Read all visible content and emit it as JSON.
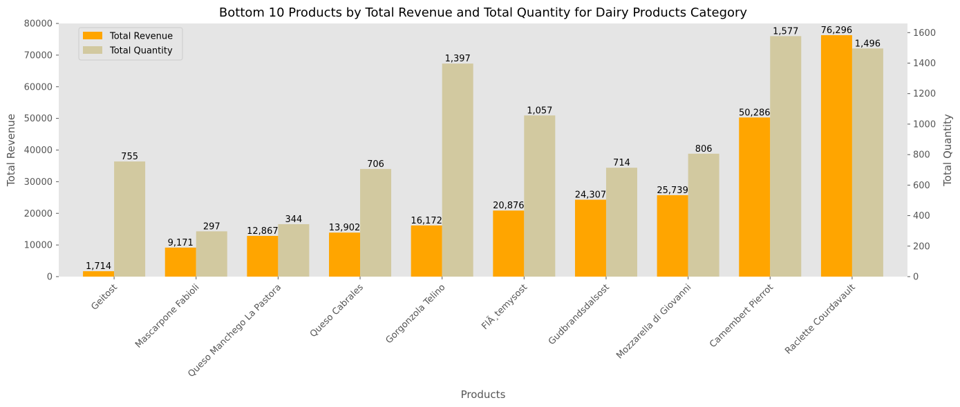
{
  "chart_data": {
    "type": "bar",
    "title": "Bottom 10 Products by Total Revenue and Total Quantity for Dairy Products Category",
    "xlabel": "Products",
    "ylabel": "Total Revenue",
    "y2label": "Total Quantity",
    "categories": [
      "Geitost",
      "Mascarpone Fabioli",
      "Queso Manchego La Pastora",
      "Queso Cabrales",
      "Gorgonzola Telino",
      "FlÃ¸temysost",
      "Gudbrandsdalsost",
      "Mozzarella di Giovanni",
      "Camembert Pierrot",
      "Raclette Courdavault"
    ],
    "series": [
      {
        "name": "Total Revenue",
        "axis": "left",
        "color": "#FFA500",
        "values": [
          1714,
          9171,
          12867,
          13902,
          16172,
          20876,
          24307,
          25739,
          50286,
          76296
        ],
        "labels": [
          "1,714",
          "9,171",
          "12,867",
          "13,902",
          "16,172",
          "20,876",
          "24,307",
          "25,739",
          "50,286",
          "76,296"
        ]
      },
      {
        "name": "Total Quantity",
        "axis": "right",
        "color": "#D2C9A0",
        "values": [
          755,
          297,
          344,
          706,
          1397,
          1057,
          714,
          806,
          1577,
          1496
        ],
        "labels": [
          "755",
          "297",
          "344",
          "706",
          "1,397",
          "1,057",
          "714",
          "806",
          "1,577",
          "1,496"
        ]
      }
    ],
    "ylim": [
      0,
      80000
    ],
    "yticks": [
      "0",
      "10000",
      "20000",
      "30000",
      "40000",
      "50000",
      "60000",
      "70000",
      "80000"
    ],
    "y2lim": [
      0,
      1660
    ],
    "y2ticks": [
      "0",
      "200",
      "400",
      "600",
      "800",
      "1000",
      "1200",
      "1400",
      "1600"
    ],
    "grid": false,
    "legend_position": "top-left",
    "background_color": "#E5E5E5"
  }
}
